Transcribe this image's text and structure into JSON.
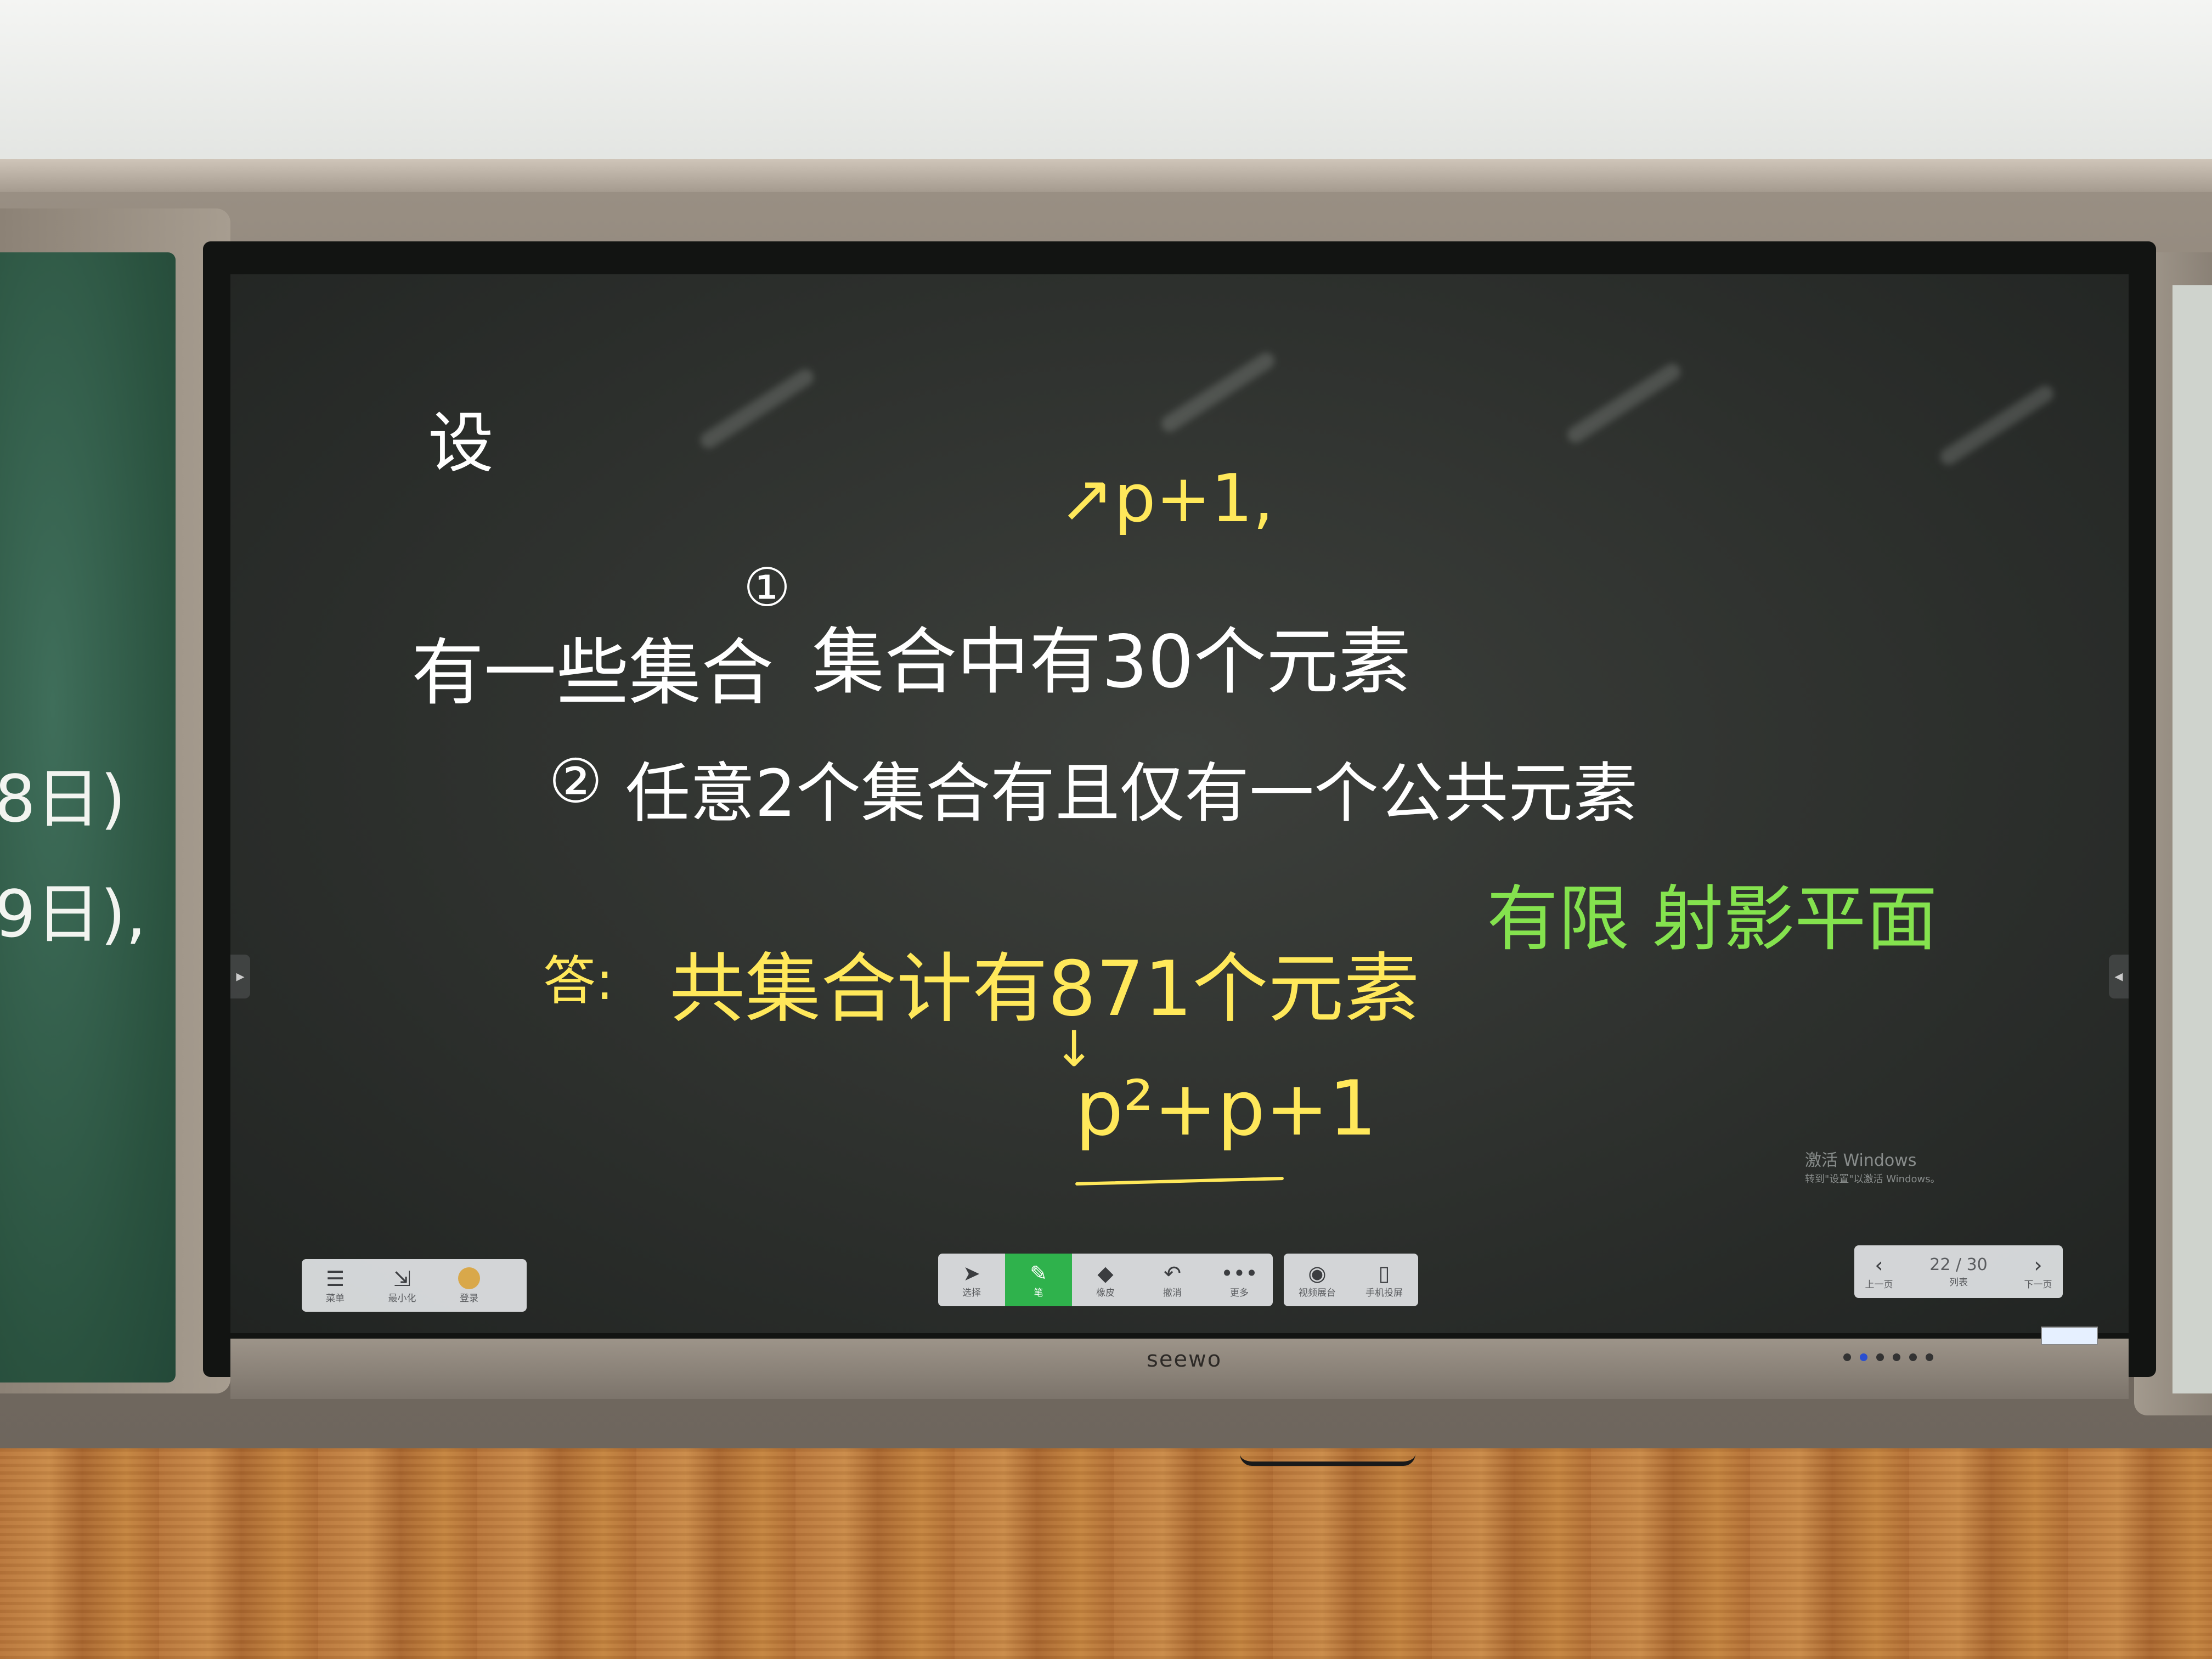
{
  "board_notes": {
    "heading": "设",
    "line1_start": "有一些集合",
    "line1_circle": "①",
    "line1_rest": "集合中有30个元素",
    "arrow_note": "↗p+1,",
    "line2_circle": "②",
    "line2_text": "任意2个集合有且仅有一个公共元素",
    "answer_label": "答:",
    "answer_text": "共集合计有871个元素",
    "down_arrow": "↓",
    "answer_formula": "p²+p+1",
    "green_note": "有限 射影平面"
  },
  "left_board_fragments": [
    "8日)",
    "9日),"
  ],
  "ink_colors": {
    "white": "#ffffff",
    "yellow": "#ffe85a",
    "green": "#84e24e"
  },
  "toolbar_left": {
    "items": [
      {
        "icon": "menu-icon",
        "label": "菜单"
      },
      {
        "icon": "minimize-icon",
        "label": "最小化"
      },
      {
        "icon": "avatar-icon",
        "label": "登录"
      }
    ]
  },
  "toolbar_center": {
    "items": [
      {
        "icon": "cursor-icon",
        "label": "选择"
      },
      {
        "icon": "pen-icon",
        "label": "笔",
        "active": true
      },
      {
        "icon": "eraser-icon",
        "label": "橡皮"
      },
      {
        "icon": "undo-icon",
        "label": "撤消"
      },
      {
        "icon": "more-icon",
        "label": "更多"
      }
    ],
    "accent": "#2fb24c"
  },
  "toolbar_right": {
    "items": [
      {
        "icon": "camera-icon",
        "label": "视频展台"
      },
      {
        "icon": "phone-icon",
        "label": "手机投屏"
      }
    ]
  },
  "pager": {
    "prev_label": "上一页",
    "current": "22 / 30",
    "middle_label": "列表",
    "next_label": "下一页"
  },
  "watermark": {
    "title": "激活 Windows",
    "subtitle": "转到\"设置\"以激活 Windows。"
  },
  "brand": "seewo"
}
